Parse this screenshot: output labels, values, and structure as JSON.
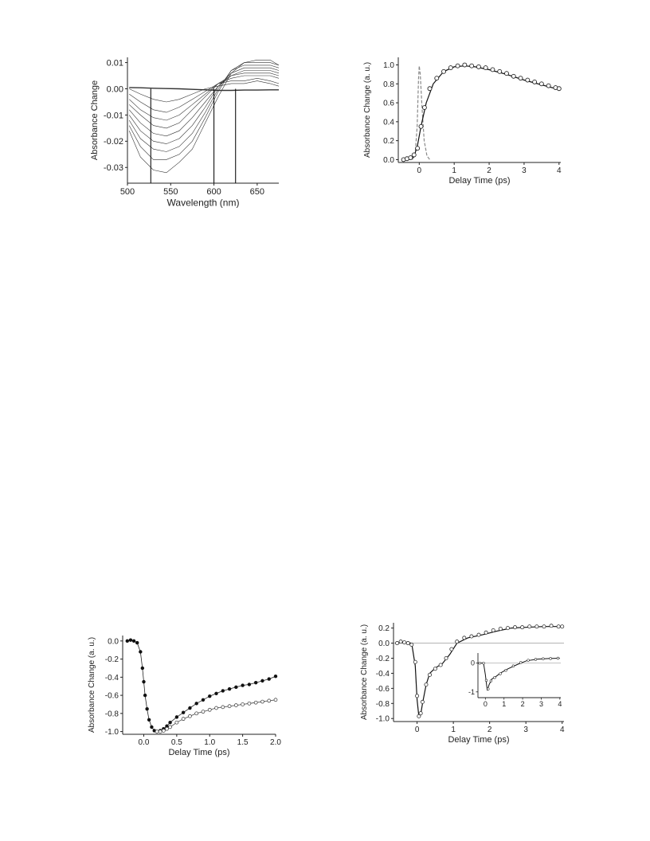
{
  "chart_data": [
    {
      "type": "line",
      "xlabel": "Wavelength (nm)",
      "ylabel": "Absorbance Change",
      "xlim": [
        500,
        675
      ],
      "ylim": [
        -0.036,
        0.012
      ],
      "xticks": [
        500,
        550,
        600,
        650
      ],
      "xtick_labels": [
        "500",
        "550",
        "600",
        "650"
      ],
      "yticks": [
        0.01,
        0.0,
        -0.01,
        -0.02,
        -0.03
      ],
      "ytick_labels": [
        "0.01",
        "0.00",
        "-0.01",
        "-0.02",
        "-0.03"
      ],
      "markers": [
        527,
        600,
        625
      ],
      "x": [
        502,
        515,
        530,
        545,
        560,
        575,
        590,
        605,
        620,
        635,
        650,
        665,
        675
      ],
      "series": [
        {
          "values": [
            0.0005,
            0.0004,
            0.0002,
            0.0001,
            0.0,
            -0.0002,
            -0.0004,
            -0.0006,
            -0.0006,
            -0.0005,
            -0.0005,
            -0.0004,
            -0.0004
          ]
        },
        {
          "values": [
            0.0,
            -0.002,
            -0.004,
            -0.005,
            -0.004,
            -0.002,
            0.0,
            0.001,
            0.002,
            0.002,
            0.003,
            0.002,
            0.001
          ]
        },
        {
          "values": [
            -0.002,
            -0.005,
            -0.008,
            -0.009,
            -0.007,
            -0.004,
            -0.001,
            0.002,
            0.003,
            0.003,
            0.004,
            0.003,
            0.002
          ]
        },
        {
          "values": [
            -0.004,
            -0.008,
            -0.011,
            -0.012,
            -0.01,
            -0.006,
            -0.002,
            0.002,
            0.004,
            0.005,
            0.005,
            0.005,
            0.004
          ]
        },
        {
          "values": [
            -0.006,
            -0.01,
            -0.014,
            -0.015,
            -0.013,
            -0.008,
            -0.003,
            0.002,
            0.005,
            0.006,
            0.006,
            0.006,
            0.005
          ]
        },
        {
          "values": [
            -0.008,
            -0.013,
            -0.017,
            -0.018,
            -0.016,
            -0.011,
            -0.005,
            0.001,
            0.005,
            0.007,
            0.007,
            0.007,
            0.006
          ]
        },
        {
          "values": [
            -0.01,
            -0.016,
            -0.02,
            -0.021,
            -0.019,
            -0.014,
            -0.007,
            0.001,
            0.006,
            0.008,
            0.008,
            0.008,
            0.007
          ]
        },
        {
          "values": [
            -0.012,
            -0.019,
            -0.023,
            -0.024,
            -0.022,
            -0.017,
            -0.009,
            0.0,
            0.007,
            0.009,
            0.009,
            0.009,
            0.008
          ]
        },
        {
          "values": [
            -0.014,
            -0.022,
            -0.027,
            -0.027,
            -0.025,
            -0.02,
            -0.011,
            -0.001,
            0.007,
            0.01,
            0.01,
            0.01,
            0.009
          ]
        },
        {
          "values": [
            -0.016,
            -0.026,
            -0.031,
            -0.032,
            -0.028,
            -0.023,
            -0.013,
            -0.003,
            0.006,
            0.01,
            0.011,
            0.011,
            0.009
          ]
        }
      ]
    },
    {
      "type": "line",
      "xlabel": "Delay Time (ps)",
      "ylabel": "Absorbance Change (a. u.)",
      "xlim": [
        -0.6,
        4.05
      ],
      "ylim": [
        -0.03,
        1.08
      ],
      "xticks": [
        0,
        1,
        2,
        3,
        4
      ],
      "xtick_labels": [
        "0",
        "1",
        "2",
        "3",
        "4"
      ],
      "yticks": [
        0.0,
        0.2,
        0.4,
        0.6,
        0.8,
        1.0
      ],
      "ytick_labels": [
        "0.0",
        "0.2",
        "0.4",
        "0.6",
        "0.8",
        "1.0"
      ],
      "pulse": {
        "x": [
          -0.2,
          -0.12,
          -0.06,
          -0.02,
          0.0,
          0.03,
          0.08,
          0.14,
          0.22,
          0.3
        ],
        "y": [
          0.0,
          0.05,
          0.35,
          0.85,
          0.99,
          0.9,
          0.55,
          0.2,
          0.04,
          0.0
        ]
      },
      "fit": {
        "x": [
          -0.5,
          -0.3,
          -0.15,
          -0.05,
          0.05,
          0.2,
          0.4,
          0.7,
          1.0,
          1.3,
          1.6,
          2.0,
          2.5,
          3.0,
          3.5,
          4.0
        ],
        "y": [
          0.0,
          0.0,
          0.03,
          0.15,
          0.35,
          0.6,
          0.8,
          0.93,
          0.98,
          0.99,
          0.98,
          0.95,
          0.9,
          0.84,
          0.79,
          0.74
        ]
      },
      "points": {
        "x": [
          -0.45,
          -0.35,
          -0.25,
          -0.15,
          -0.05,
          0.05,
          0.15,
          0.3,
          0.5,
          0.7,
          0.9,
          1.1,
          1.3,
          1.5,
          1.7,
          1.9,
          2.1,
          2.3,
          2.5,
          2.7,
          2.9,
          3.1,
          3.3,
          3.5,
          3.7,
          3.9,
          4.0
        ],
        "y": [
          0.0,
          0.01,
          0.02,
          0.05,
          0.12,
          0.35,
          0.55,
          0.75,
          0.86,
          0.93,
          0.97,
          0.99,
          1.0,
          0.99,
          0.98,
          0.97,
          0.95,
          0.93,
          0.91,
          0.88,
          0.86,
          0.84,
          0.82,
          0.8,
          0.78,
          0.76,
          0.75
        ]
      }
    },
    {
      "type": "line",
      "xlabel": "Delay Time (ps)",
      "ylabel": "Absorbance Change (a. u.)",
      "xlim": [
        -0.32,
        2.0
      ],
      "ylim": [
        -1.03,
        0.06
      ],
      "xticks": [
        0.0,
        0.5,
        1.0,
        1.5,
        2.0
      ],
      "xtick_labels": [
        "0.0",
        "0.5",
        "1.0",
        "1.5",
        "2.0"
      ],
      "yticks": [
        0.0,
        -0.2,
        -0.4,
        -0.6,
        -0.8,
        -1.0
      ],
      "ytick_labels": [
        "0.0",
        "-0.2",
        "-0.4",
        "-0.6",
        "-0.8",
        "-1.0"
      ],
      "filled": {
        "x": [
          -0.25,
          -0.2,
          -0.15,
          -0.1,
          -0.05,
          -0.02,
          0.0,
          0.02,
          0.05,
          0.08,
          0.12,
          0.16,
          0.2,
          0.25,
          0.3,
          0.35,
          0.4,
          0.5,
          0.6,
          0.7,
          0.8,
          0.9,
          1.0,
          1.1,
          1.2,
          1.3,
          1.4,
          1.5,
          1.6,
          1.7,
          1.8,
          1.9,
          2.0
        ],
        "y": [
          0.0,
          0.01,
          0.0,
          -0.02,
          -0.12,
          -0.3,
          -0.45,
          -0.6,
          -0.75,
          -0.87,
          -0.95,
          -0.99,
          -1.0,
          -0.99,
          -0.97,
          -0.94,
          -0.9,
          -0.84,
          -0.79,
          -0.74,
          -0.69,
          -0.65,
          -0.61,
          -0.58,
          -0.55,
          -0.53,
          -0.51,
          -0.49,
          -0.48,
          -0.46,
          -0.44,
          -0.42,
          -0.39
        ]
      },
      "open": {
        "x": [
          0.2,
          0.25,
          0.3,
          0.35,
          0.4,
          0.5,
          0.6,
          0.7,
          0.8,
          0.9,
          1.0,
          1.1,
          1.2,
          1.3,
          1.4,
          1.5,
          1.6,
          1.7,
          1.8,
          1.9,
          2.0
        ],
        "y": [
          -1.0,
          -1.0,
          -0.99,
          -0.97,
          -0.95,
          -0.9,
          -0.86,
          -0.83,
          -0.8,
          -0.78,
          -0.76,
          -0.74,
          -0.73,
          -0.72,
          -0.71,
          -0.7,
          -0.69,
          -0.68,
          -0.67,
          -0.66,
          -0.65
        ]
      }
    },
    {
      "type": "line",
      "xlabel": "Delay Time (ps)",
      "ylabel": "Absorbance Change (a. u.)",
      "xlim": [
        -0.65,
        4.05
      ],
      "ylim": [
        -1.04,
        0.27
      ],
      "xticks": [
        0,
        1,
        2,
        3,
        4
      ],
      "xtick_labels": [
        "0",
        "1",
        "2",
        "3",
        "4"
      ],
      "yticks": [
        0.2,
        0.0,
        -0.2,
        -0.4,
        -0.6,
        -0.8,
        -1.0
      ],
      "ytick_labels": [
        "0.2",
        "0.0",
        "-0.2",
        "-0.4",
        "-0.6",
        "-0.8",
        "-1.0"
      ],
      "fit": {
        "x": [
          -0.6,
          -0.3,
          -0.15,
          -0.05,
          0.0,
          0.05,
          0.1,
          0.15,
          0.25,
          0.35,
          0.5,
          0.7,
          0.9,
          1.1,
          1.4,
          1.8,
          2.2,
          2.6,
          3.0,
          3.5,
          4.0
        ],
        "y": [
          0.0,
          0.01,
          0.0,
          -0.3,
          -0.75,
          -0.98,
          -0.95,
          -0.8,
          -0.55,
          -0.4,
          -0.33,
          -0.27,
          -0.15,
          0.0,
          0.07,
          0.11,
          0.16,
          0.2,
          0.21,
          0.22,
          0.22
        ]
      },
      "points": {
        "x": [
          -0.55,
          -0.45,
          -0.35,
          -0.25,
          -0.15,
          -0.05,
          0.0,
          0.05,
          0.1,
          0.15,
          0.25,
          0.35,
          0.5,
          0.65,
          0.8,
          0.95,
          1.1,
          1.3,
          1.5,
          1.7,
          1.9,
          2.1,
          2.3,
          2.5,
          2.7,
          2.9,
          3.1,
          3.3,
          3.5,
          3.7,
          3.9,
          4.0
        ],
        "y": [
          0.0,
          0.02,
          0.01,
          0.0,
          -0.02,
          -0.25,
          -0.7,
          -0.97,
          -0.93,
          -0.78,
          -0.55,
          -0.42,
          -0.34,
          -0.29,
          -0.2,
          -0.08,
          0.02,
          0.07,
          0.09,
          0.11,
          0.14,
          0.17,
          0.19,
          0.2,
          0.21,
          0.21,
          0.22,
          0.22,
          0.22,
          0.23,
          0.22,
          0.22
        ]
      },
      "inset": {
        "xlim": [
          -0.4,
          4.05
        ],
        "ylim": [
          -1.2,
          0.35
        ],
        "xticks": [
          0,
          1,
          2,
          3,
          4
        ],
        "xtick_labels": [
          "0",
          "1",
          "2",
          "3",
          "4"
        ],
        "yticks": [
          0,
          -1
        ],
        "ytick_labels": [
          "0",
          "-1"
        ],
        "fit": {
          "x": [
            -0.4,
            -0.1,
            0.0,
            0.1,
            0.2,
            0.35,
            0.5,
            0.8,
            1.2,
            1.7,
            2.2,
            2.8,
            3.4,
            4.0
          ],
          "y": [
            0.0,
            0.0,
            -0.4,
            -0.95,
            -0.75,
            -0.55,
            -0.5,
            -0.35,
            -0.2,
            -0.05,
            0.08,
            0.14,
            0.16,
            0.17
          ]
        },
        "points": {
          "x": [
            -0.3,
            -0.1,
            0.05,
            0.15,
            0.3,
            0.5,
            0.8,
            1.1,
            1.5,
            1.9,
            2.3,
            2.7,
            3.1,
            3.5,
            3.9
          ],
          "y": [
            0.0,
            0.0,
            -0.6,
            -0.9,
            -0.62,
            -0.5,
            -0.37,
            -0.25,
            -0.1,
            0.02,
            0.1,
            0.13,
            0.15,
            0.16,
            0.17
          ]
        }
      }
    }
  ]
}
